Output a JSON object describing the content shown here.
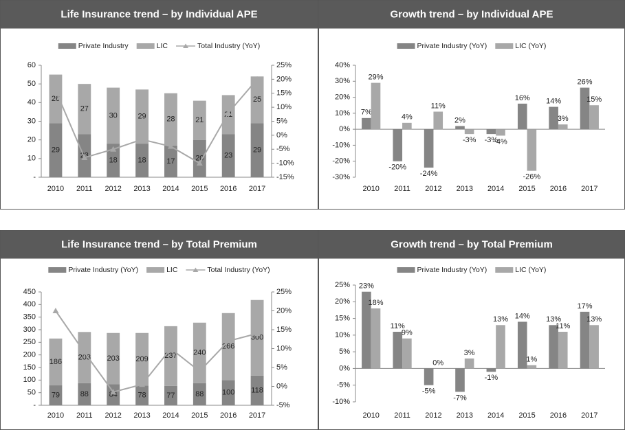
{
  "chart_data": [
    {
      "type": "bar",
      "stacked": true,
      "title": "Life Insurance trend – by Individual APE",
      "categories": [
        "2010",
        "2011",
        "2012",
        "2013",
        "2014",
        "2015",
        "2016",
        "2017"
      ],
      "series": [
        {
          "name": "Private Industry",
          "color": "#858585",
          "values": [
            29,
            23,
            18,
            18,
            17,
            20,
            23,
            29
          ]
        },
        {
          "name": "LIC",
          "color": "#a8a8a8",
          "values": [
            26,
            27,
            30,
            29,
            28,
            21,
            21,
            25
          ]
        },
        {
          "name": "Total Industry (YoY)",
          "type": "line",
          "axis": "y2",
          "color": "#a8a8a8",
          "values": [
            16,
            -8,
            -5,
            -1.5,
            -4,
            -10,
            8,
            20
          ]
        }
      ],
      "ylim": [
        0,
        60
      ],
      "yticks": [
        {
          "value": 0,
          "label": "-"
        },
        10,
        20,
        30,
        40,
        50,
        60
      ],
      "y2lim": [
        -15,
        25
      ],
      "y2ticks": [
        {
          "value": -15,
          "label": "-15%"
        },
        {
          "value": -10,
          "label": "-10%"
        },
        {
          "value": -5,
          "label": "-5%"
        },
        {
          "value": 0,
          "label": "0%"
        },
        {
          "value": 5,
          "label": "5%"
        },
        {
          "value": 10,
          "label": "10%"
        },
        {
          "value": 15,
          "label": "15%"
        },
        {
          "value": 20,
          "label": "20%"
        },
        {
          "value": 25,
          "label": "25%"
        }
      ]
    },
    {
      "type": "bar",
      "title": "Growth trend – by Individual APE",
      "categories": [
        "2010",
        "2011",
        "2012",
        "2013",
        "2014",
        "2015",
        "2016",
        "2017"
      ],
      "series": [
        {
          "name": "Private Industry (YoY)",
          "color": "#858585",
          "values": [
            7,
            -20,
            -24,
            2,
            -3,
            16,
            14,
            26
          ],
          "value_labels": [
            "7%",
            "-20%",
            "-24%",
            "2%",
            "-3%",
            "16%",
            "14%",
            "26%"
          ]
        },
        {
          "name": "LIC (YoY)",
          "color": "#a8a8a8",
          "values": [
            29,
            4,
            11,
            -3,
            -4,
            -26,
            3,
            15
          ],
          "value_labels": [
            "29%",
            "4%",
            "11%",
            "-3%",
            "-4%",
            "-26%",
            "3%",
            "15%"
          ]
        }
      ],
      "ylim": [
        -30,
        40
      ],
      "yticks": [
        {
          "value": -30,
          "label": "-30%"
        },
        {
          "value": -20,
          "label": "-20%"
        },
        {
          "value": -10,
          "label": "-10%"
        },
        {
          "value": 0,
          "label": "0%"
        },
        {
          "value": 10,
          "label": "10%"
        },
        {
          "value": 20,
          "label": "20%"
        },
        {
          "value": 30,
          "label": "30%"
        },
        {
          "value": 40,
          "label": "40%"
        }
      ]
    },
    {
      "type": "bar",
      "stacked": true,
      "title": "Life Insurance trend – by Total Premium",
      "categories": [
        "2010",
        "2011",
        "2012",
        "2013",
        "2014",
        "2015",
        "2016",
        "2017"
      ],
      "series": [
        {
          "name": "Private Industry (YoY)",
          "color": "#858585",
          "values": [
            79,
            88,
            84,
            78,
            77,
            88,
            100,
            118
          ]
        },
        {
          "name": "LIC",
          "color": "#a8a8a8",
          "values": [
            186,
            203,
            203,
            209,
            237,
            240,
            266,
            300
          ]
        },
        {
          "name": "Total Industry (YoY)",
          "type": "line",
          "axis": "y2",
          "color": "#a8a8a8",
          "values": [
            20,
            9,
            -1.5,
            0.5,
            10,
            4,
            12,
            14
          ]
        }
      ],
      "ylim": [
        0,
        450
      ],
      "yticks": [
        {
          "value": 0,
          "label": "-"
        },
        50,
        100,
        150,
        200,
        250,
        300,
        350,
        400,
        450
      ],
      "y2lim": [
        -5,
        25
      ],
      "y2ticks": [
        {
          "value": -5,
          "label": "-5%"
        },
        {
          "value": 0,
          "label": "0%"
        },
        {
          "value": 5,
          "label": "5%"
        },
        {
          "value": 10,
          "label": "10%"
        },
        {
          "value": 15,
          "label": "15%"
        },
        {
          "value": 20,
          "label": "20%"
        },
        {
          "value": 25,
          "label": "25%"
        }
      ]
    },
    {
      "type": "bar",
      "title": "Growth trend – by Total Premium",
      "categories": [
        "2010",
        "2011",
        "2012",
        "2013",
        "2014",
        "2015",
        "2016",
        "2017"
      ],
      "series": [
        {
          "name": "Private Industry (YoY)",
          "color": "#858585",
          "values": [
            23,
            11,
            -5,
            -7,
            -1,
            14,
            13,
            17
          ],
          "value_labels": [
            "23%",
            "11%",
            "-5%",
            "-7%",
            "-1%",
            "14%",
            "13%",
            "17%"
          ]
        },
        {
          "name": "LIC (YoY)",
          "color": "#a8a8a8",
          "values": [
            18,
            9,
            0,
            3,
            13,
            1,
            11,
            13
          ],
          "value_labels": [
            "18%",
            "9%",
            "0%",
            "3%",
            "13%",
            "1%",
            "11%",
            "13%"
          ]
        }
      ],
      "ylim": [
        -10,
        25
      ],
      "yticks": [
        {
          "value": -10,
          "label": "-10%"
        },
        {
          "value": -5,
          "label": "-5%"
        },
        {
          "value": 0,
          "label": "0%"
        },
        {
          "value": 5,
          "label": "5%"
        },
        {
          "value": 10,
          "label": "10%"
        },
        {
          "value": 15,
          "label": "15%"
        },
        {
          "value": 20,
          "label": "20%"
        },
        {
          "value": 25,
          "label": "25%"
        }
      ]
    }
  ]
}
